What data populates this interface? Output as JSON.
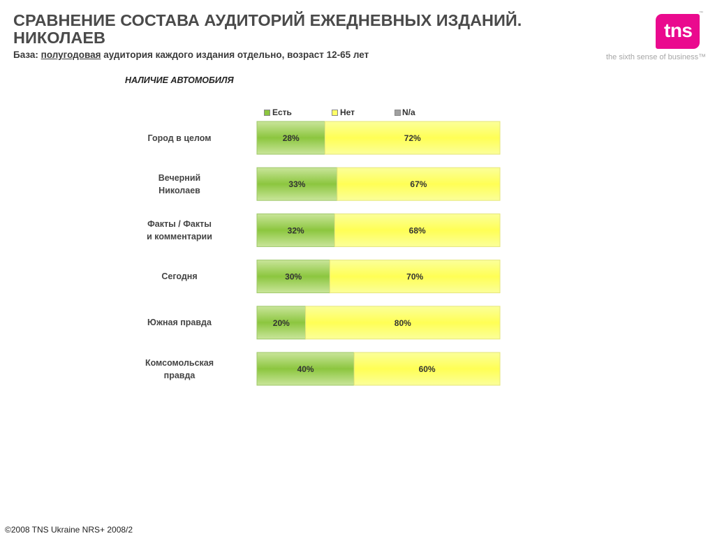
{
  "header": {
    "title_line1": "СРАВНЕНИЕ СОСТАВА АУДИТОРИЙ ЕЖЕДНЕВНЫХ ИЗДАНИЙ.",
    "title_line2": "НИКОЛАЕВ",
    "subtitle_prefix": "База: ",
    "subtitle_underlined": "полугодовая",
    "subtitle_suffix": " аудитория каждого издания отдельно, возраст 12-65 лет"
  },
  "logo": {
    "text": "tns",
    "tm": "™",
    "tagline": "the sixth sense of business™",
    "color": "#ea0a8e"
  },
  "footer": {
    "text": "©2008 TNS Ukraine  NRS+ 2008/2"
  },
  "chart_data": {
    "type": "bar",
    "orientation": "horizontal",
    "stacked": true,
    "title": "НАЛИЧИЕ АВТОМОБИЛЯ",
    "categories": [
      [
        "Город в целом"
      ],
      [
        "Вечерний",
        "Николаев"
      ],
      [
        "Факты / Факты",
        "и комментарии"
      ],
      [
        "Сегодня"
      ],
      [
        "Южная правда"
      ],
      [
        "Комсомольская",
        "правда"
      ]
    ],
    "series": [
      {
        "name": "Есть",
        "values": [
          28,
          33,
          32,
          30,
          20,
          40
        ],
        "labels": [
          "28%",
          "33%",
          "32%",
          "30%",
          "20%",
          "40%"
        ],
        "color": "#8cc63f"
      },
      {
        "name": "Нет",
        "values": [
          72,
          67,
          68,
          70,
          80,
          60
        ],
        "labels": [
          "72%",
          "67%",
          "68%",
          "70%",
          "80%",
          "60%"
        ],
        "color": "#ffff66"
      },
      {
        "name": "N/a",
        "values": [
          0,
          0,
          0,
          0,
          0,
          0
        ],
        "labels": [
          "",
          "",
          "",
          "",
          "",
          ""
        ],
        "color": "#a0a0a0"
      }
    ],
    "xlim": [
      0,
      100
    ],
    "legend_position": "top"
  }
}
